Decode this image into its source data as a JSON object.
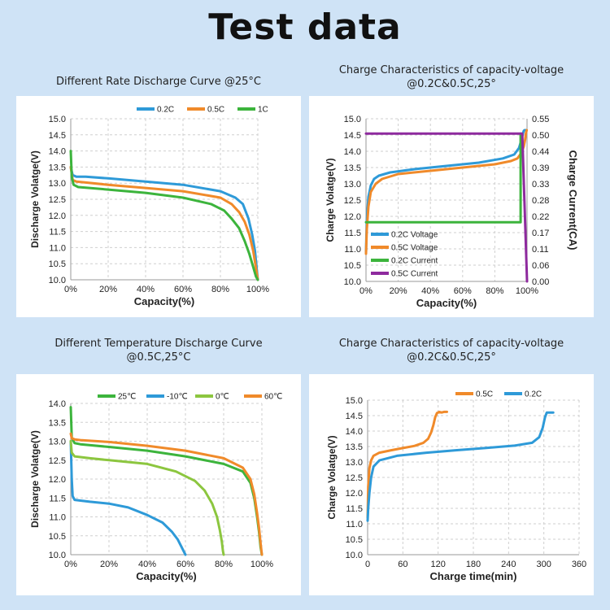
{
  "page": {
    "title": "Test data",
    "background": "#cfe3f6"
  },
  "panels": [
    {
      "title_lines": [
        "Different Rate Discharge Curve @25°C"
      ],
      "chart_data": {
        "type": "line",
        "title": "Different Rate Discharge Curve @25°C",
        "xlabel": "Capacity(%)",
        "ylabel": "Discharge Volatge(V)",
        "xlim": [
          0,
          100
        ],
        "ylim": [
          10,
          15
        ],
        "x_ticks": [
          0,
          20,
          40,
          60,
          80,
          100
        ],
        "x_tick_labels": [
          "0%",
          "20%",
          "40%",
          "60%",
          "80%",
          "100%"
        ],
        "y_ticks": [
          10,
          10.5,
          11,
          11.5,
          12,
          12.5,
          13,
          13.5,
          14,
          14.5,
          15
        ],
        "y_tick_labels": [
          "10.0",
          "10.5",
          "11.0",
          "11.5",
          "12.0",
          "12.5",
          "13.0",
          "13.5",
          "14.0",
          "14.5",
          "15.0"
        ],
        "grid": "dashed",
        "legend": "top-right",
        "series": [
          {
            "name": "0.2C",
            "color": "#2e9ad8",
            "x": [
              0,
              1,
              3,
              8,
              20,
              40,
              60,
              80,
              88,
              92,
              95,
              97,
              98.5,
              99.3,
              100
            ],
            "y": [
              13.5,
              13.25,
              13.2,
              13.2,
              13.15,
              13.05,
              12.95,
              12.75,
              12.55,
              12.35,
              11.9,
              11.4,
              10.9,
              10.4,
              10.0
            ]
          },
          {
            "name": "0.5C",
            "color": "#f08a2a",
            "x": [
              0,
              1,
              3,
              8,
              20,
              40,
              60,
              80,
              86,
              90,
              93,
              95.5,
              97.5,
              98.8,
              100
            ],
            "y": [
              13.5,
              13.1,
              13.05,
              13.02,
              12.95,
              12.85,
              12.75,
              12.55,
              12.35,
              12.1,
              11.8,
              11.4,
              10.9,
              10.45,
              10.0
            ]
          },
          {
            "name": "1C",
            "color": "#3cb43c",
            "x": [
              0,
              0.5,
              1.5,
              4,
              10,
              20,
              40,
              60,
              75,
              82,
              86,
              90,
              93,
              95.5,
              97.5,
              99,
              100
            ],
            "y": [
              14.0,
              13.2,
              12.95,
              12.88,
              12.85,
              12.8,
              12.7,
              12.55,
              12.35,
              12.15,
              11.9,
              11.6,
              11.2,
              10.8,
              10.4,
              10.1,
              10.0
            ]
          }
        ]
      }
    },
    {
      "title_lines": [
        "Charge Characteristics of capacity-voltage",
        "@0.2C&0.5C,25°"
      ],
      "chart_data": {
        "type": "line",
        "title": "Charge Characteristics of capacity-voltage @0.2C&0.5C,25°",
        "xlabel": "Capacity(%)",
        "ylabel": "Charge Volatge(V)",
        "y2label": "Charge Current(CA)",
        "xlim": [
          0,
          100
        ],
        "ylim": [
          10,
          15
        ],
        "y2lim": [
          0,
          0.55
        ],
        "x_ticks": [
          0,
          20,
          40,
          60,
          80,
          100
        ],
        "x_tick_labels": [
          "0%",
          "20%",
          "40%",
          "60%",
          "80%",
          "100%"
        ],
        "y_ticks": [
          10,
          10.5,
          11,
          11.5,
          12,
          12.5,
          13,
          13.5,
          14,
          14.5,
          15
        ],
        "y_tick_labels": [
          "10.0",
          "10.5",
          "11.0",
          "11.5",
          "12.0",
          "12.5",
          "13.0",
          "13.5",
          "14.0",
          "14.5",
          "15.0"
        ],
        "y2_ticks": [
          0,
          0.055,
          0.11,
          0.165,
          0.22,
          0.275,
          0.33,
          0.385,
          0.44,
          0.495,
          0.55
        ],
        "y2_tick_labels": [
          "0.00",
          "0.06",
          "0.11",
          "0.17",
          "0.22",
          "0.28",
          "0.33",
          "0.39",
          "0.44",
          "0.50",
          "0.55"
        ],
        "grid": "dashed",
        "legend": "bottom-left",
        "series": [
          {
            "name": "0.2C Voltage",
            "axis": "left",
            "color": "#2e9ad8",
            "x": [
              0,
              0.5,
              1.5,
              3,
              5,
              8,
              15,
              30,
              50,
              70,
              85,
              92,
              95,
              96.5,
              97.5,
              98,
              98.5,
              99,
              99.5
            ],
            "y": [
              10.9,
              11.9,
              12.6,
              12.95,
              13.15,
              13.25,
              13.35,
              13.45,
              13.55,
              13.65,
              13.78,
              13.9,
              14.1,
              14.35,
              14.55,
              14.63,
              14.65,
              14.65,
              14.65
            ]
          },
          {
            "name": "0.5C Voltage",
            "axis": "left",
            "color": "#f08a2a",
            "x": [
              0,
              0.5,
              1.5,
              3,
              6,
              10,
              20,
              40,
              60,
              80,
              90,
              94,
              96.5,
              98,
              98.8,
              99.3,
              99.8
            ],
            "y": [
              10.85,
              11.6,
              12.3,
              12.75,
              13.0,
              13.15,
              13.3,
              13.4,
              13.5,
              13.6,
              13.7,
              13.78,
              13.95,
              14.15,
              14.35,
              14.55,
              14.65
            ]
          },
          {
            "name": "0.2C Current",
            "axis": "right",
            "color": "#3cb43c",
            "x": [
              0,
              96,
              96
            ],
            "y": [
              0.2,
              0.2,
              0.5
            ]
          },
          {
            "name": "0.5C Current",
            "axis": "right",
            "color": "#8e2a9e",
            "x": [
              0,
              97,
              100
            ],
            "y": [
              0.5,
              0.5,
              0.0
            ]
          }
        ]
      }
    },
    {
      "title_lines": [
        "Different Temperature Discharge Curve",
        "@0.5C,25°C"
      ],
      "chart_data": {
        "type": "line",
        "title": "Different Temperature Discharge Curve @0.5C,25°C",
        "xlabel": "Capacity(%)",
        "ylabel": "Discharge Volatge(V)",
        "xlim": [
          0,
          100
        ],
        "ylim": [
          10,
          14
        ],
        "x_ticks": [
          0,
          20,
          40,
          60,
          80,
          100
        ],
        "x_tick_labels": [
          "0%",
          "20%",
          "40%",
          "60%",
          "80%",
          "100%"
        ],
        "y_ticks": [
          10,
          10.5,
          11,
          11.5,
          12,
          12.5,
          13,
          13.5,
          14
        ],
        "y_tick_labels": [
          "10.0",
          "10.5",
          "11.0",
          "11.5",
          "12.0",
          "12.5",
          "13.0",
          "13.5",
          "14.0"
        ],
        "grid": "dashed",
        "legend": "top",
        "series": [
          {
            "name": "25℃",
            "color": "#3cb43c",
            "x": [
              0,
              0.5,
              2,
              5,
              20,
              40,
              60,
              80,
              90,
              94,
              96,
              97.5,
              98.5,
              99.3,
              100
            ],
            "y": [
              13.9,
              13.1,
              12.95,
              12.92,
              12.85,
              12.75,
              12.6,
              12.4,
              12.2,
              11.9,
              11.5,
              11.0,
              10.6,
              10.2,
              10.0
            ]
          },
          {
            "name": "-10℃",
            "color": "#2e9ad8",
            "x": [
              0,
              0.5,
              1,
              2,
              10,
              20,
              30,
              40,
              48,
              53,
              56,
              58,
              59.5,
              60
            ],
            "y": [
              13.0,
              12.0,
              11.55,
              11.45,
              11.4,
              11.35,
              11.25,
              11.05,
              10.85,
              10.6,
              10.4,
              10.2,
              10.05,
              10.0
            ]
          },
          {
            "name": "0℃",
            "color": "#8cc63f",
            "x": [
              0,
              0.5,
              2,
              10,
              20,
              40,
              55,
              65,
              70,
              74,
              76.5,
              78,
              79,
              79.6,
              80
            ],
            "y": [
              13.0,
              12.7,
              12.6,
              12.55,
              12.5,
              12.4,
              12.2,
              11.95,
              11.7,
              11.35,
              11.0,
              10.65,
              10.35,
              10.1,
              10.0
            ]
          },
          {
            "name": "60℃",
            "color": "#f08a2a",
            "x": [
              0,
              0.5,
              2,
              5,
              20,
              40,
              60,
              80,
              90,
              94,
              96,
              97.5,
              98.5,
              99.3,
              100
            ],
            "y": [
              13.2,
              13.08,
              13.05,
              13.03,
              12.98,
              12.88,
              12.75,
              12.55,
              12.3,
              12.0,
              11.6,
              11.1,
              10.7,
              10.3,
              10.0
            ]
          }
        ]
      }
    },
    {
      "title_lines": [
        "Charge Characteristics of capacity-voltage",
        "@0.2C&0.5C,25°"
      ],
      "chart_data": {
        "type": "line",
        "title": "Charge Characteristics of capacity-voltage @0.2C&0.5C,25°",
        "xlabel": "Charge time(min)",
        "ylabel": "Charge Volatge(V)",
        "xlim": [
          0,
          360
        ],
        "ylim": [
          10,
          15
        ],
        "x_ticks": [
          0,
          60,
          120,
          180,
          240,
          300,
          360
        ],
        "x_tick_labels": [
          "0",
          "60",
          "120",
          "180",
          "240",
          "300",
          "360"
        ],
        "y_ticks": [
          10,
          10.5,
          11,
          11.5,
          12,
          12.5,
          13,
          13.5,
          14,
          14.5,
          15
        ],
        "y_tick_labels": [
          "10.0",
          "10.5",
          "11.0",
          "11.5",
          "12.0",
          "12.5",
          "13.0",
          "13.5",
          "14.0",
          "14.5",
          "15.0"
        ],
        "grid": "dashed",
        "legend": "top-right",
        "series": [
          {
            "name": "0.5C",
            "color": "#f08a2a",
            "x": [
              0,
              1,
              3,
              6,
              10,
              20,
              40,
              60,
              80,
              95,
              103,
              108,
              112,
              115,
              118,
              122,
              126,
              130,
              135
            ],
            "y": [
              11.2,
              12.2,
              12.8,
              13.05,
              13.2,
              13.3,
              13.38,
              13.45,
              13.52,
              13.62,
              13.75,
              13.95,
              14.2,
              14.45,
              14.58,
              14.62,
              14.6,
              14.62,
              14.62
            ]
          },
          {
            "name": "0.2C",
            "color": "#2e9ad8",
            "x": [
              0,
              1,
              3,
              6,
              10,
              20,
              50,
              100,
              150,
              200,
              250,
              280,
              292,
              298,
              302,
              305,
              308,
              312,
              316
            ],
            "y": [
              11.1,
              11.5,
              12.0,
              12.5,
              12.85,
              13.05,
              13.2,
              13.3,
              13.38,
              13.45,
              13.53,
              13.62,
              13.8,
              14.1,
              14.45,
              14.6,
              14.6,
              14.6,
              14.6
            ]
          }
        ]
      }
    }
  ]
}
